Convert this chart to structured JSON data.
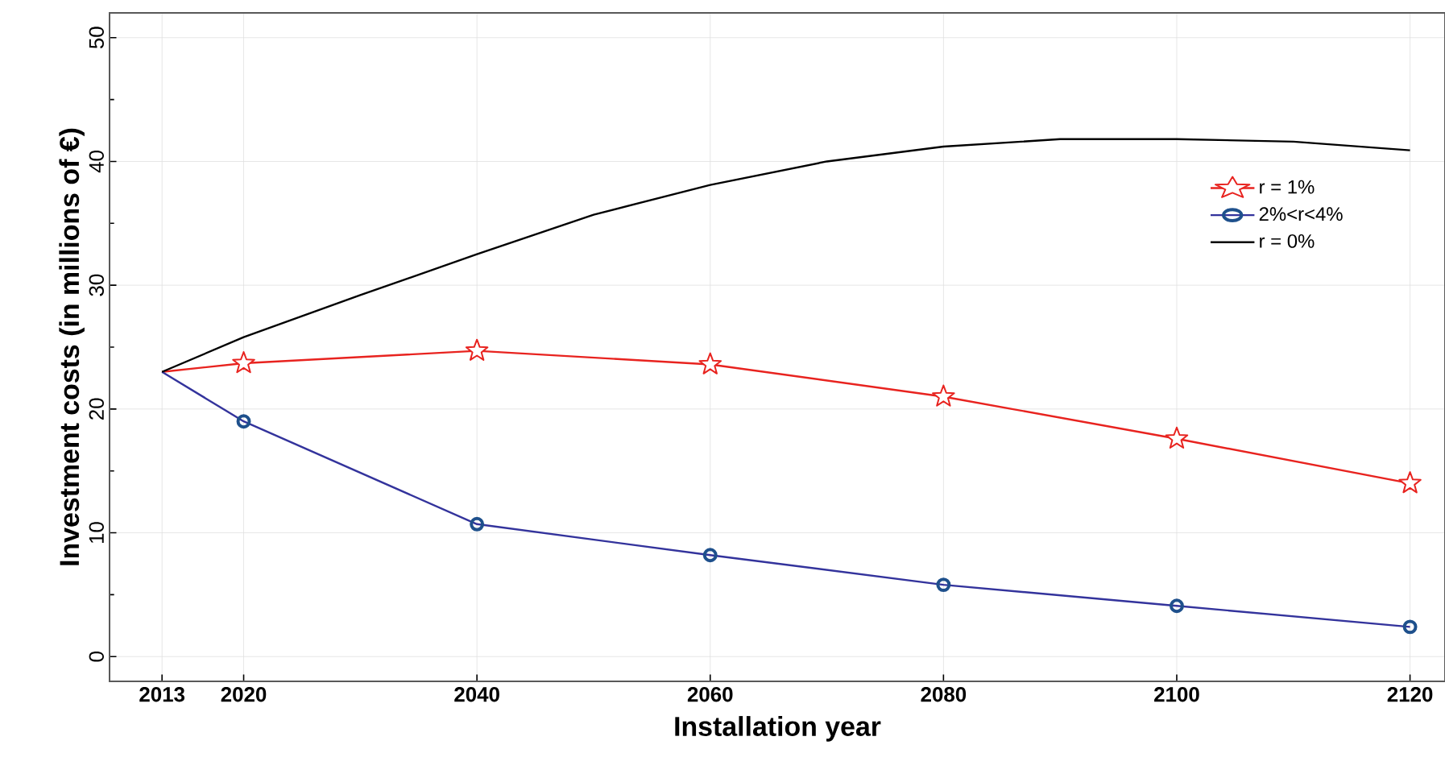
{
  "chart_data": {
    "type": "line",
    "xlabel": "Installation  year",
    "ylabel": "Investment costs (in millions of €)",
    "xlim": [
      2008.5,
      2123
    ],
    "ylim": [
      -2,
      52
    ],
    "xticks": [
      2013,
      2020,
      2040,
      2060,
      2080,
      2100,
      2120
    ],
    "yticks": [
      0,
      10,
      20,
      30,
      40,
      50
    ],
    "grid": true,
    "legend": "top right",
    "series": [
      {
        "name": "r = 1%",
        "color": "#e8231f",
        "marker": "star",
        "x": [
          2013,
          2020,
          2040,
          2060,
          2080,
          2100,
          2120
        ],
        "values": [
          23.0,
          23.7,
          24.7,
          23.6,
          21.0,
          17.6,
          14.0
        ]
      },
      {
        "name": "2%<r<4%",
        "color": "#33339c",
        "marker": "circle",
        "x": [
          2013,
          2020,
          2040,
          2060,
          2080,
          2100,
          2120
        ],
        "values": [
          23.0,
          19.0,
          10.7,
          8.2,
          5.8,
          4.1,
          2.4
        ]
      },
      {
        "name": "r = 0%",
        "color": "#000000",
        "marker": "none",
        "x": [
          2013,
          2020,
          2030,
          2040,
          2050,
          2060,
          2070,
          2080,
          2090,
          2100,
          2110,
          2120
        ],
        "values": [
          23.0,
          25.8,
          29.2,
          32.5,
          35.7,
          38.1,
          40.0,
          41.2,
          41.8,
          41.8,
          41.6,
          40.9
        ]
      }
    ]
  }
}
